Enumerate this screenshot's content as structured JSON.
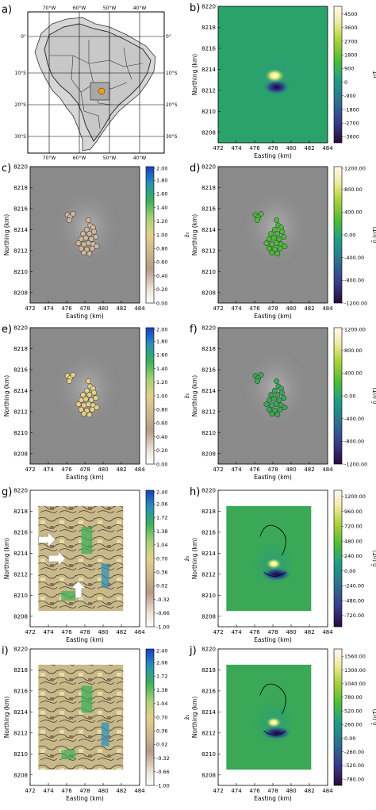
{
  "panel_letters": [
    "a)",
    "b)",
    "c)",
    "d)",
    "e)",
    "f)",
    "g)",
    "h)",
    "i)",
    "j)"
  ],
  "colors": {
    "map_land": "#c8c8c8",
    "map_land_focus": "#a8a8a8",
    "marker_orange": "#f39c12",
    "field_background": "#8a8a8a",
    "tilt_map_fill": "#c9b98a",
    "tilt_contour": "#1a1a1a",
    "vector_arrow": "#ffffff",
    "contour_line": "#000000"
  },
  "chart_data": [
    {
      "panel": "a)",
      "type": "map",
      "lon_ticks": [
        "70°W",
        "60°W",
        "50°W",
        "40°W"
      ],
      "lat_ticks_left": [
        "0°",
        "10°S",
        "20°S",
        "30°S"
      ],
      "lat_ticks_right": [
        "0°",
        "10°S",
        "20°S",
        "30°S"
      ],
      "marker": "study area"
    },
    {
      "panel": "b)",
      "type": "heatmap",
      "xlabel": "Easting (km)",
      "ylabel": "Northing (km)",
      "xticks": [
        "472",
        "474",
        "476",
        "478",
        "480",
        "482",
        "484"
      ],
      "yticks": [
        "8208",
        "8210",
        "8212",
        "8214",
        "8216",
        "8218",
        "8220"
      ],
      "xlim": [
        472,
        484
      ],
      "ylim": [
        8207,
        8220
      ],
      "colormap": "viridis",
      "colorbar_label": "nT",
      "colorbar_ticks": [
        "4500",
        "3600",
        "2700",
        "1800",
        "900",
        "0",
        "-900",
        "-1800",
        "-2700",
        "-3600"
      ],
      "clim": [
        -4000,
        5000
      ],
      "anomaly": {
        "x": 478.2,
        "y": 8213.4,
        "positive_peak": 4500,
        "negative_x": 478.4,
        "negative_y": 8212.3,
        "negative_peak": -3600
      }
    },
    {
      "panel": "c)",
      "type": "scatter",
      "xlabel": "Easting (km)",
      "ylabel": "Northing (km)",
      "xticks": [
        "472",
        "474",
        "476",
        "478",
        "480",
        "482",
        "484"
      ],
      "yticks": [
        "8208",
        "8210",
        "8212",
        "8214",
        "8216",
        "8218",
        "8220"
      ],
      "xlim": [
        472,
        484
      ],
      "ylim": [
        8207,
        8220
      ],
      "colormap": "tilt",
      "colorbar_label": "ẑ₀",
      "colorbar_ticks": [
        "2.00",
        "1.80",
        "1.60",
        "1.40",
        "1.20",
        "1.00",
        "0.80",
        "0.60",
        "0.40",
        "0.20",
        "0.00"
      ],
      "clim": [
        0,
        2
      ],
      "marker_color": "#cdb79e"
    },
    {
      "panel": "d)",
      "type": "scatter",
      "xlabel": "Easting (km)",
      "ylabel": "Northing (km)",
      "xticks": [
        "472",
        "474",
        "476",
        "478",
        "480",
        "482",
        "484"
      ],
      "yticks": [
        "8208",
        "8210",
        "8212",
        "8214",
        "8216",
        "8218",
        "8220"
      ],
      "xlim": [
        472,
        484
      ],
      "ylim": [
        8207,
        8220
      ],
      "colormap": "viridis",
      "colorbar_label": "δ̂ (nT)",
      "colorbar_ticks": [
        "1200.00",
        "800.00",
        "400.00",
        "0.00",
        "-400.00",
        "-800.00",
        "-1200.00"
      ],
      "clim": [
        -1200,
        1200
      ],
      "marker_color": "#4cbb3a"
    },
    {
      "panel": "e)",
      "type": "scatter",
      "xlabel": "Easting (km)",
      "ylabel": "Northing (km)",
      "xticks": [
        "472",
        "474",
        "476",
        "478",
        "480",
        "482",
        "484"
      ],
      "yticks": [
        "8208",
        "8210",
        "8212",
        "8214",
        "8216",
        "8218",
        "8220"
      ],
      "xlim": [
        472,
        484
      ],
      "ylim": [
        8207,
        8220
      ],
      "colormap": "tilt",
      "colorbar_label": "ẑ₀",
      "colorbar_ticks": [
        "2.00",
        "1.80",
        "1.60",
        "1.40",
        "1.20",
        "1.00",
        "0.80",
        "0.60",
        "0.40",
        "0.20",
        "0.00"
      ],
      "clim": [
        0,
        2
      ],
      "marker_color": "#e3d08a"
    },
    {
      "panel": "f)",
      "type": "scatter",
      "xlabel": "Easting (km)",
      "ylabel": "Northing (km)",
      "xticks": [
        "472",
        "474",
        "476",
        "478",
        "480",
        "482",
        "484"
      ],
      "yticks": [
        "8208",
        "8210",
        "8212",
        "8214",
        "8216",
        "8218",
        "8220"
      ],
      "xlim": [
        472,
        484
      ],
      "ylim": [
        8207,
        8220
      ],
      "colormap": "viridis",
      "colorbar_label": "δ̂ (nT)",
      "colorbar_ticks": [
        "1200.00",
        "800.00",
        "400.00",
        "0.00",
        "-400.00",
        "-800.00",
        "-1200.00"
      ],
      "clim": [
        -1200,
        1200
      ],
      "marker_color": "#3aa857"
    },
    {
      "panel": "g)",
      "type": "heatmap",
      "xlabel": "Easting (km)",
      "ylabel": "Northing (km)",
      "xticks": [
        "472",
        "474",
        "476",
        "478",
        "480",
        "482",
        "484"
      ],
      "yticks": [
        "8208",
        "8210",
        "8212",
        "8214",
        "8216",
        "8218",
        "8220"
      ],
      "xlim": [
        472,
        484
      ],
      "ylim": [
        8207,
        8220
      ],
      "data_extent": {
        "x": [
          472.9,
          482.2
        ],
        "y": [
          8208.5,
          8218.5
        ]
      },
      "colormap": "tilt",
      "colorbar_label": "ẑ₀",
      "colorbar_ticks": [
        "2.40",
        "2.06",
        "1.72",
        "1.38",
        "1.04",
        "0.70",
        "0.36",
        "0.02",
        "-0.32",
        "-0.66",
        "-1.00"
      ],
      "clim": [
        -1,
        2.4
      ],
      "arrows": [
        {
          "x": 473.8,
          "y": 8215.3,
          "direction": "right"
        },
        {
          "x": 474.9,
          "y": 8213.5,
          "direction": "right"
        },
        {
          "x": 477.3,
          "y": 8210.5,
          "direction": "up"
        }
      ]
    },
    {
      "panel": "h)",
      "type": "heatmap",
      "xlabel": "Easting (km)",
      "ylabel": "Northing (km)",
      "xticks": [
        "472",
        "474",
        "476",
        "478",
        "480",
        "482",
        "484"
      ],
      "yticks": [
        "8208",
        "8210",
        "8212",
        "8214",
        "8216",
        "8218",
        "8220"
      ],
      "xlim": [
        472,
        484
      ],
      "ylim": [
        8207,
        8220
      ],
      "data_extent": {
        "x": [
          472.9,
          482.2
        ],
        "y": [
          8208.5,
          8218.5
        ]
      },
      "colormap": "viridis",
      "colorbar_label": "δ̂ (nT)",
      "colorbar_ticks": [
        "1200.00",
        "960.00",
        "720.00",
        "480.00",
        "240.00",
        "0.00",
        "-240.00",
        "-480.00",
        "-720.00"
      ],
      "clim": [
        -900,
        1300
      ],
      "anomaly": {
        "x": 478.1,
        "y": 8213.0
      }
    },
    {
      "panel": "i)",
      "type": "heatmap",
      "xlabel": "Easting (km)",
      "ylabel": "Northing (km)",
      "xticks": [
        "472",
        "474",
        "476",
        "478",
        "480",
        "482",
        "484"
      ],
      "yticks": [
        "8208",
        "8210",
        "8212",
        "8214",
        "8216",
        "8218",
        "8220"
      ],
      "xlim": [
        472,
        484
      ],
      "ylim": [
        8207,
        8220
      ],
      "data_extent": {
        "x": [
          472.9,
          482.2
        ],
        "y": [
          8208.5,
          8218.5
        ]
      },
      "colormap": "tilt",
      "colorbar_label": "ẑ₀",
      "colorbar_ticks": [
        "2.40",
        "2.06",
        "1.72",
        "1.38",
        "1.04",
        "0.70",
        "0.36",
        "0.02",
        "-0.32",
        "-0.66",
        "-1.00"
      ],
      "clim": [
        -1,
        2.4
      ]
    },
    {
      "panel": "j)",
      "type": "heatmap",
      "xlabel": "Easting (km)",
      "ylabel": "Northing (km)",
      "xticks": [
        "472",
        "474",
        "476",
        "478",
        "480",
        "482",
        "484"
      ],
      "yticks": [
        "8208",
        "8210",
        "8212",
        "8214",
        "8216",
        "8218",
        "8220"
      ],
      "xlim": [
        472,
        484
      ],
      "ylim": [
        8207,
        8220
      ],
      "data_extent": {
        "x": [
          472.9,
          482.2
        ],
        "y": [
          8208.5,
          8218.5
        ]
      },
      "colormap": "viridis",
      "colorbar_label": "δ̂ (nT)",
      "colorbar_ticks": [
        "1560.00",
        "1300.00",
        "1040.00",
        "780.00",
        "520.00",
        "260.00",
        "0.00",
        "-260.00",
        "-520.00",
        "-780.00"
      ],
      "clim": [
        -900,
        1700
      ],
      "anomaly": {
        "x": 478.1,
        "y": 8213.0
      }
    }
  ]
}
